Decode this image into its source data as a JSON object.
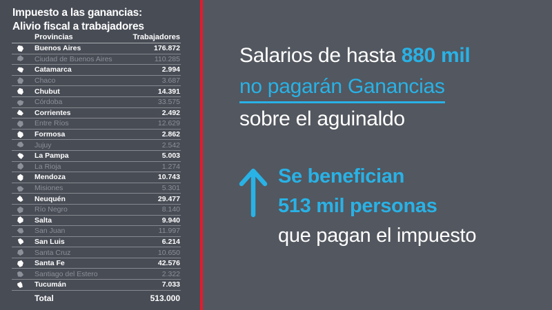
{
  "left": {
    "title_line1": "Impuesto a las ganancias:",
    "title_line2": "Alivio fiscal a trabajadores",
    "table": {
      "col_province": "Provincias",
      "col_workers": "Trabajadores",
      "rows": [
        {
          "name": "Buenos Aires",
          "value": "176.872",
          "highlight": true
        },
        {
          "name": "Ciudad de Buenos Aires",
          "value": "110.285",
          "highlight": false
        },
        {
          "name": "Catamarca",
          "value": "2.994",
          "highlight": true
        },
        {
          "name": "Chaco",
          "value": "3.687",
          "highlight": false
        },
        {
          "name": "Chubut",
          "value": "14.391",
          "highlight": true
        },
        {
          "name": "Córdoba",
          "value": "33.575",
          "highlight": false
        },
        {
          "name": "Corrientes",
          "value": "2.492",
          "highlight": true
        },
        {
          "name": "Entre Ríos",
          "value": "12.629",
          "highlight": false
        },
        {
          "name": "Formosa",
          "value": "2.862",
          "highlight": true
        },
        {
          "name": "Jujuy",
          "value": "2.542",
          "highlight": false
        },
        {
          "name": "La Pampa",
          "value": "5.003",
          "highlight": true
        },
        {
          "name": "La Rioja",
          "value": "1.274",
          "highlight": false
        },
        {
          "name": "Mendoza",
          "value": "10.743",
          "highlight": true
        },
        {
          "name": "Misiones",
          "value": "5.301",
          "highlight": false
        },
        {
          "name": "Neuquén",
          "value": "29.477",
          "highlight": true
        },
        {
          "name": "Río Negro",
          "value": "8.140",
          "highlight": false
        },
        {
          "name": "Salta",
          "value": "9.940",
          "highlight": true
        },
        {
          "name": "San Juan",
          "value": "11.997",
          "highlight": false
        },
        {
          "name": "San Luis",
          "value": "6.214",
          "highlight": true
        },
        {
          "name": "Santa Cruz",
          "value": "10.650",
          "highlight": false
        },
        {
          "name": "Santa Fe",
          "value": "42.576",
          "highlight": true
        },
        {
          "name": "Santiago del Estero",
          "value": "2.322",
          "highlight": false
        },
        {
          "name": "Tucumán",
          "value": "7.033",
          "highlight": true
        }
      ],
      "total_label": "Total",
      "total_value": "513.000"
    }
  },
  "right": {
    "headline": {
      "part1": "Salarios de hasta ",
      "highlight": "880 mil",
      "line2": "no pagarán Ganancias",
      "line3": "sobre el aguinaldo"
    },
    "benefit": {
      "arrow_icon": "up-arrow",
      "line1": "Se benefician",
      "line2": "513 mil personas",
      "line3": "que pagan el impuesto"
    }
  },
  "colors": {
    "panel_left_bg": "#484c55",
    "panel_right_bg": "#53575f",
    "divider_red": "#e8192c",
    "accent_cyan": "#29b2e6",
    "dim_text": "#8b9099",
    "bright_text": "#ffffff"
  },
  "chart_data": {
    "type": "table",
    "title": "Impuesto a las ganancias: Alivio fiscal a trabajadores",
    "columns": [
      "Provincias",
      "Trabajadores"
    ],
    "rows": [
      [
        "Buenos Aires",
        176872
      ],
      [
        "Ciudad de Buenos Aires",
        110285
      ],
      [
        "Catamarca",
        2994
      ],
      [
        "Chaco",
        3687
      ],
      [
        "Chubut",
        14391
      ],
      [
        "Córdoba",
        33575
      ],
      [
        "Corrientes",
        2492
      ],
      [
        "Entre Ríos",
        12629
      ],
      [
        "Formosa",
        2862
      ],
      [
        "Jujuy",
        2542
      ],
      [
        "La Pampa",
        5003
      ],
      [
        "La Rioja",
        1274
      ],
      [
        "Mendoza",
        10743
      ],
      [
        "Misiones",
        5301
      ],
      [
        "Neuquén",
        29477
      ],
      [
        "Río Negro",
        8140
      ],
      [
        "Salta",
        9940
      ],
      [
        "San Juan",
        11997
      ],
      [
        "San Luis",
        6214
      ],
      [
        "Santa Cruz",
        10650
      ],
      [
        "Santa Fe",
        42576
      ],
      [
        "Santiago del Estero",
        2322
      ],
      [
        "Tucumán",
        7033
      ]
    ],
    "total": [
      "Total",
      513000
    ],
    "annotations": [
      "Salarios de hasta 880 mil no pagarán Ganancias sobre el aguinaldo",
      "Se benefician 513 mil personas que pagan el impuesto"
    ]
  }
}
